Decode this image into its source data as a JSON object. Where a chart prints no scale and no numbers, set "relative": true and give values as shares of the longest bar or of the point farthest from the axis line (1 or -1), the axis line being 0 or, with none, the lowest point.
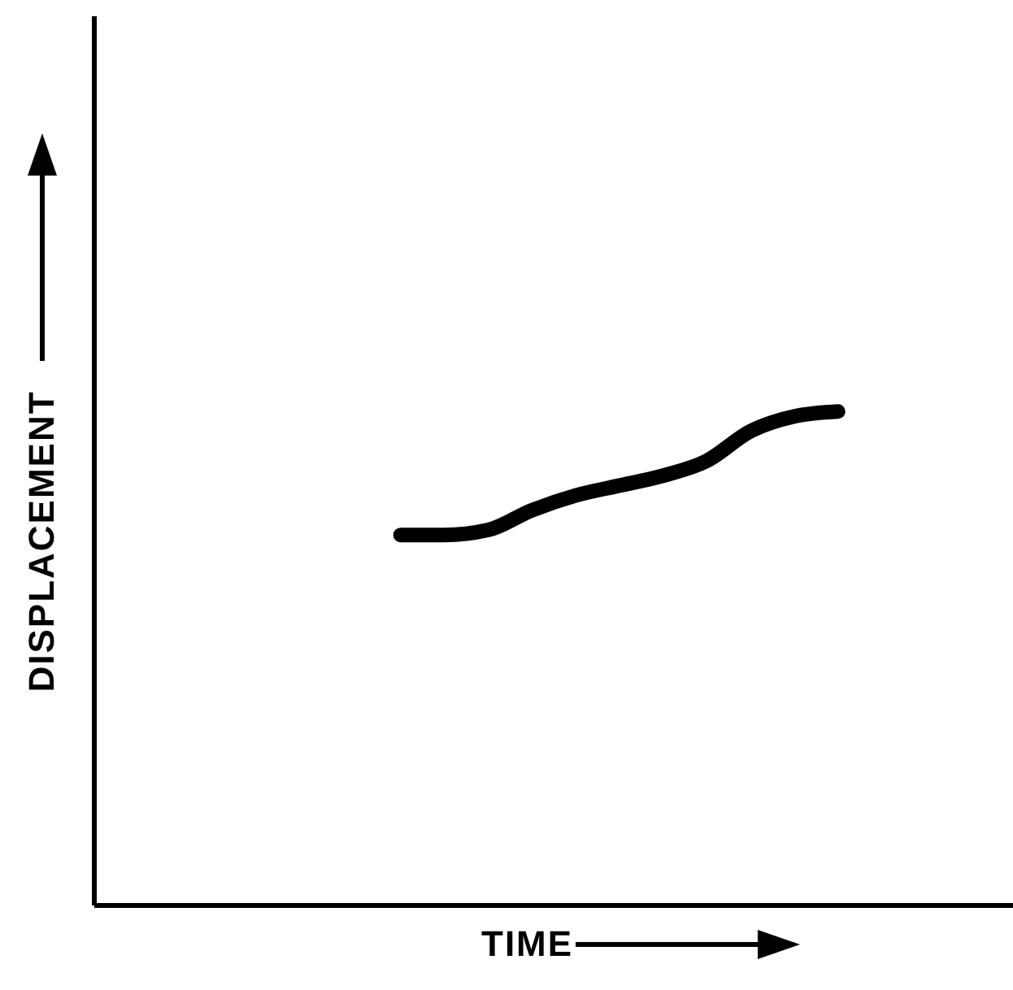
{
  "chart_data": {
    "type": "line",
    "xlabel": "TIME",
    "ylabel": "DISPLACEMENT",
    "relative": true,
    "grid": false,
    "legend": false,
    "line_style": "solid",
    "color": "#000000",
    "categories": [
      null,
      null,
      null,
      null,
      null,
      null,
      null,
      null,
      null,
      null,
      null,
      null,
      null,
      null,
      null,
      null,
      null,
      null,
      null,
      null,
      null,
      null
    ],
    "values": [
      null,
      null,
      null,
      null,
      null,
      null,
      null,
      0.75,
      0.75,
      0.76,
      0.8,
      0.83,
      0.85,
      0.87,
      0.9,
      0.96,
      0.99,
      1,
      null,
      null,
      null,
      null
    ]
  }
}
